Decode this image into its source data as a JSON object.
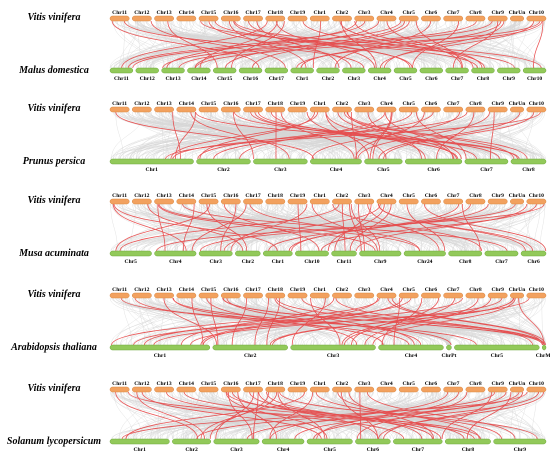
{
  "colors": {
    "top_chr": "#f2a15f",
    "top_chr_stroke": "#d98a45",
    "bottom_chr": "#92c95a",
    "bottom_chr_stroke": "#6ea83b",
    "bg_link": "#c9c9c9",
    "highlight_link": "#e8393a"
  },
  "panels": [
    {
      "top_species": "Vitis vinifera",
      "bottom_species": "Malus domestica",
      "top_chrs": [
        "Chr11",
        "Chr12",
        "Chr13",
        "Chr14",
        "Chr15",
        "Chr16",
        "Chr17",
        "Chr18",
        "Chr19",
        "Chr1",
        "Chr2",
        "Chr3",
        "Chr4",
        "Chr5",
        "Chr6",
        "Chr7",
        "Chr8",
        "Chr9",
        "ChrUn",
        "Chr10"
      ],
      "bottom_chrs": [
        "Chr11",
        "Chr12",
        "Chr13",
        "Chr14",
        "Chr15",
        "Chr16",
        "Chr17",
        "Chr1",
        "Chr2",
        "Chr3",
        "Chr4",
        "Chr5",
        "Chr6",
        "Chr7",
        "Chr8",
        "Chr9",
        "Chr10"
      ]
    },
    {
      "top_species": "Vitis vinifera",
      "bottom_species": "Prunus persica",
      "top_chrs": [
        "Chr11",
        "Chr12",
        "Chr13",
        "Chr14",
        "Chr15",
        "Chr16",
        "Chr17",
        "Chr18",
        "Chr19",
        "Chr1",
        "Chr2",
        "Chr3",
        "Chr4",
        "Chr5",
        "Chr6",
        "Chr7",
        "Chr8",
        "Chr9",
        "ChrUn",
        "Chr10"
      ],
      "bottom_chrs": [
        "Chr1",
        "Chr2",
        "Chr3",
        "Chr4",
        "Chr5",
        "Chr6",
        "Chr7",
        "Chr8"
      ]
    },
    {
      "top_species": "Vitis vinifera",
      "bottom_species": "Musa acuminata",
      "top_chrs": [
        "Chr11",
        "Chr12",
        "Chr13",
        "Chr14",
        "Chr15",
        "Chr16",
        "Chr17",
        "Chr18",
        "Chr19",
        "Chr1",
        "Chr2",
        "Chr3",
        "Chr4",
        "Chr5",
        "Chr6",
        "Chr7",
        "Chr8",
        "Chr9",
        "ChrUn",
        "Chr10"
      ],
      "bottom_chrs": [
        "Chr5",
        "Chr4",
        "Chr3",
        "Chr2",
        "Chr1",
        "Chr10",
        "Chr11",
        "Chr9",
        "Chr24",
        "Chr8",
        "Chr7",
        "Chr6"
      ]
    },
    {
      "top_species": "Vitis vinifera",
      "bottom_species": "Arabidopsis thaliana",
      "top_chrs": [
        "Chr11",
        "Chr12",
        "Chr13",
        "Chr14",
        "Chr15",
        "Chr16",
        "Chr17",
        "Chr18",
        "Chr19",
        "Chr1",
        "Chr2",
        "Chr3",
        "Chr4",
        "Chr5",
        "Chr6",
        "Chr7",
        "Chr8",
        "Chr9",
        "ChrUn",
        "Chr10"
      ],
      "bottom_chrs": [
        "Chr1",
        "Chr2",
        "Chr3",
        "Chr4",
        "ChrPt",
        "Chr5",
        "ChrMt"
      ]
    },
    {
      "top_species": "Vitis vinifera",
      "bottom_species": "Solanum lycopersicum",
      "top_chrs": [
        "Chr11",
        "Chr12",
        "Chr13",
        "Chr14",
        "Chr15",
        "Chr16",
        "Chr17",
        "Chr18",
        "Chr19",
        "Chr1",
        "Chr2",
        "Chr3",
        "Chr4",
        "Chr5",
        "Chr6",
        "Chr7",
        "Chr8",
        "Chr9",
        "ChrUn",
        "Chr10"
      ],
      "bottom_chrs": [
        "Chr1",
        "Chr2",
        "Chr3",
        "Chr4",
        "Chr5",
        "Chr6",
        "Chr7",
        "Chr8",
        "Chr9"
      ]
    }
  ]
}
